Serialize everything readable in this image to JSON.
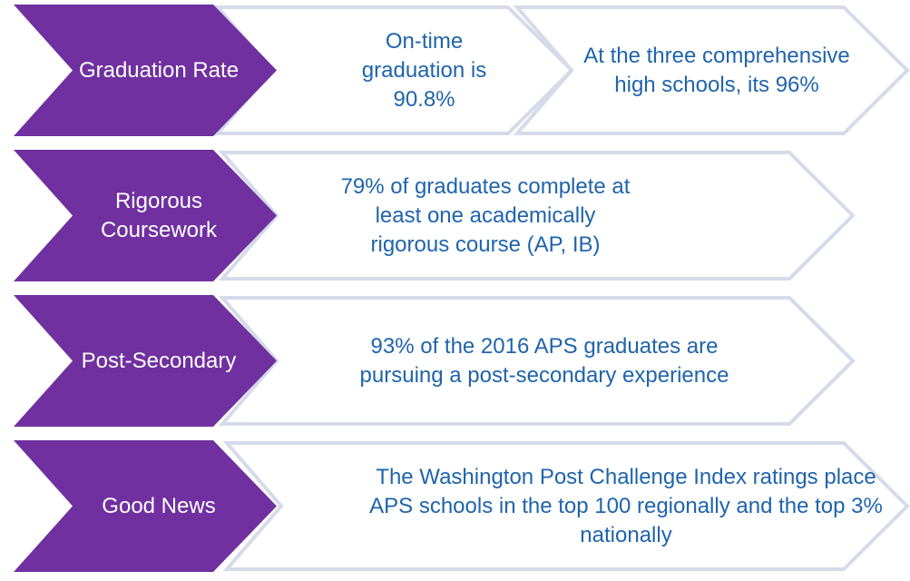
{
  "rows": [
    {
      "label": "Graduation Rate",
      "details": [
        "On-time graduation is 90.8%",
        "At the three comprehensive high schools, its 96%"
      ]
    },
    {
      "label": "Rigorous Coursework",
      "details": [
        "79% of graduates complete at least one academically rigorous course (AP, IB)"
      ]
    },
    {
      "label": "Post-Secondary",
      "details": [
        "93% of the 2016 APS graduates are pursuing a post-secondary experience"
      ]
    },
    {
      "label": "Good News",
      "details": [
        "The Washington Post Challenge Index ratings place APS schools in the top 100 regionally and the top 3% nationally"
      ]
    }
  ]
}
